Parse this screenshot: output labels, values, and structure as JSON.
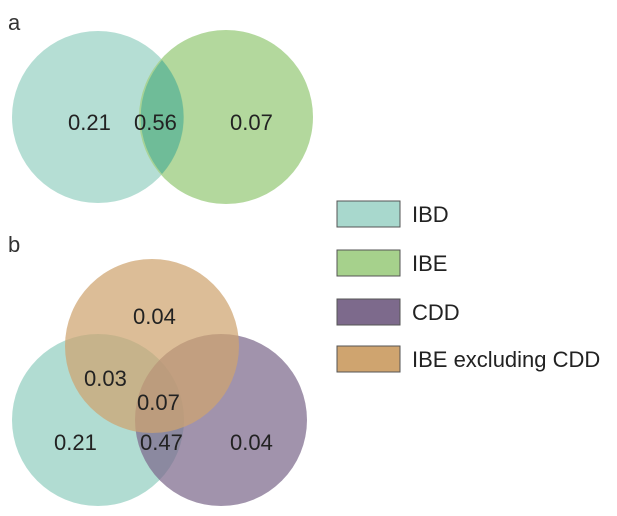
{
  "colors": {
    "IBD": "#a8d8cd",
    "IBE": "#a6d18c",
    "CDD": "#7d6a8c",
    "IBE_excl_CDD": "#cfa46f"
  },
  "panel_a": {
    "label": "a",
    "values": {
      "ibd_only": "0.21",
      "ibd_ibe": "0.56",
      "ibe_only": "0.07"
    }
  },
  "panel_b": {
    "label": "b",
    "values": {
      "top_only": "0.04",
      "top_left": "0.03",
      "center": "0.07",
      "left_only": "0.21",
      "left_right": "0.47",
      "right_only": "0.04"
    }
  },
  "legend": [
    {
      "label": "IBD",
      "color_key": "IBD"
    },
    {
      "label": "IBE",
      "color_key": "IBE"
    },
    {
      "label": "CDD",
      "color_key": "CDD"
    },
    {
      "label": "IBE excluding CDD",
      "color_key": "IBE_excl_CDD"
    }
  ]
}
